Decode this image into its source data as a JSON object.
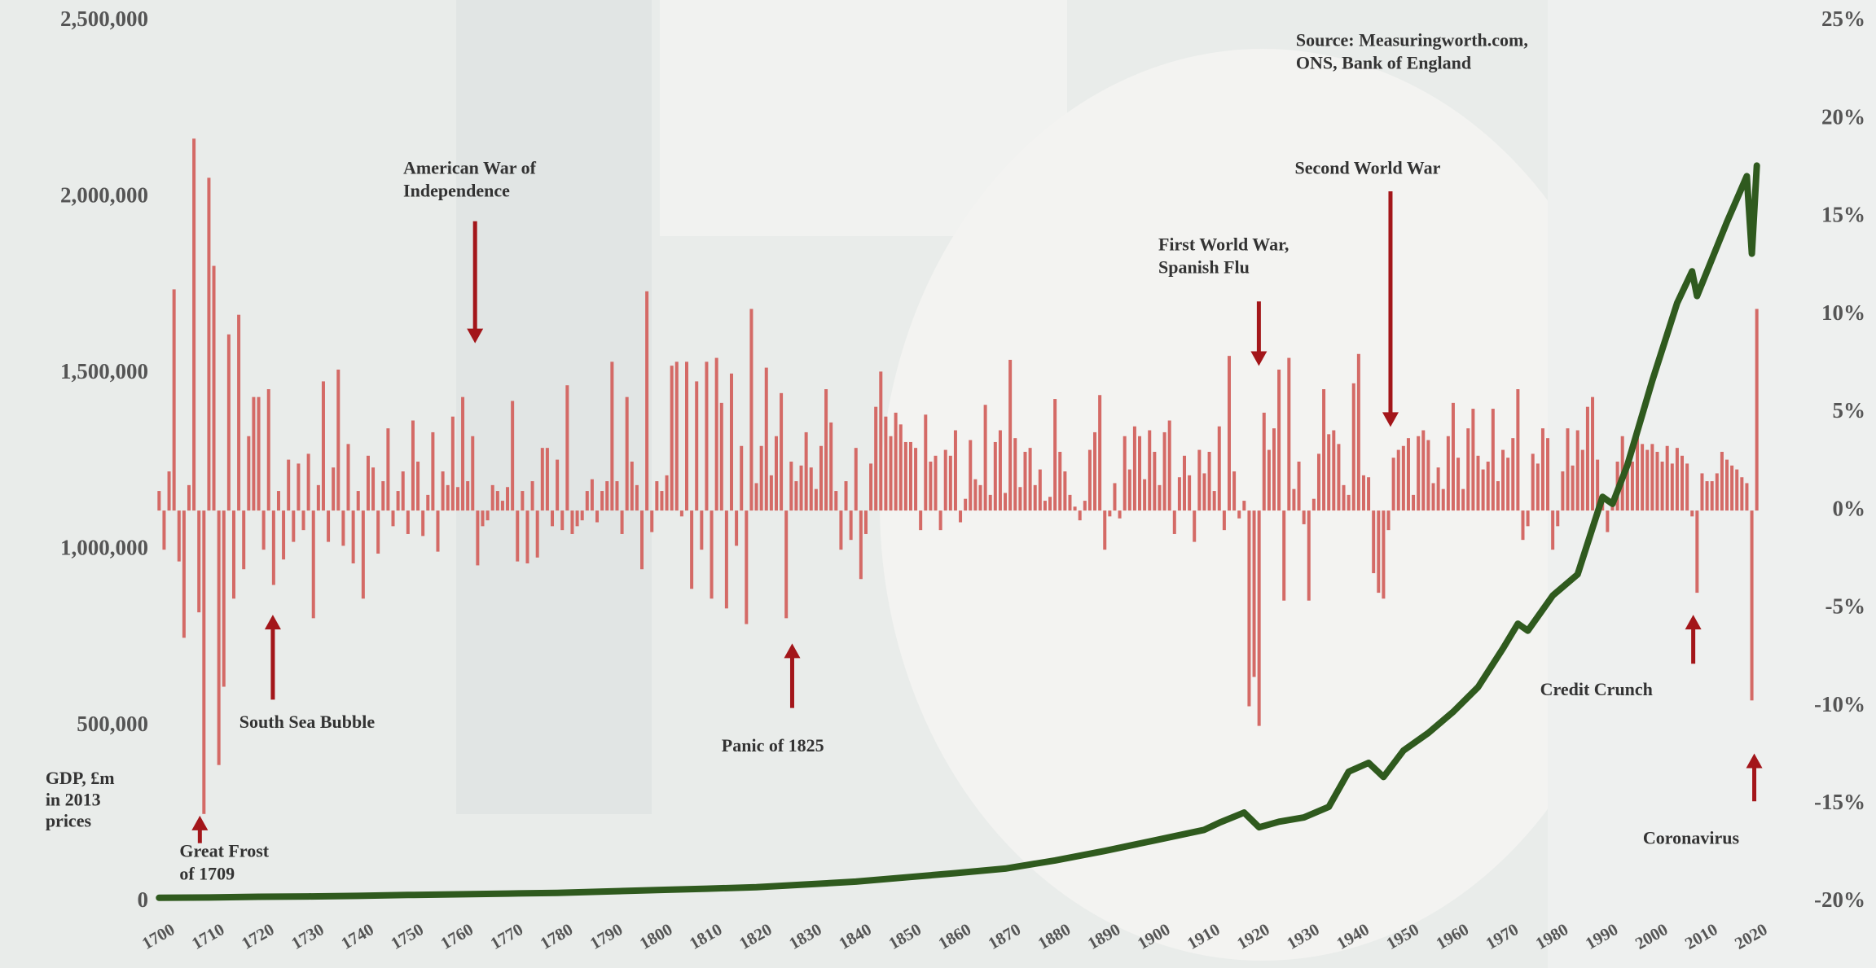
{
  "chart_data": {
    "type": "bar",
    "source": [
      "Source: Measuringworth.com,",
      "ONS, Bank of England"
    ],
    "ylabel": [
      "GDP, £m",
      "in 2013",
      "prices"
    ],
    "xlim": [
      1697,
      2024
    ],
    "xticks": [
      1700,
      1710,
      1720,
      1730,
      1740,
      1750,
      1760,
      1770,
      1780,
      1790,
      1800,
      1810,
      1820,
      1830,
      1840,
      1850,
      1860,
      1870,
      1880,
      1890,
      1900,
      1910,
      1920,
      1930,
      1940,
      1950,
      1960,
      1970,
      1980,
      1990,
      2000,
      2010,
      2020
    ],
    "ylim": [
      0,
      2500000
    ],
    "yticks": [
      0,
      {
        "value": 500000,
        "label": "500,000"
      },
      {
        "value": 1000000,
        "label": "1,000,000"
      },
      {
        "value": 1500000,
        "label": "1,500,000"
      },
      {
        "value": 2000000,
        "label": "2,000,000"
      },
      {
        "value": 2500000,
        "label": "2,500,000"
      }
    ],
    "y2lim": [
      -20,
      25
    ],
    "y2ticks": [
      {
        "value": -20,
        "label": "-20%"
      },
      {
        "value": -15,
        "label": "-15%"
      },
      {
        "value": -10,
        "label": "-10%"
      },
      {
        "value": -5,
        "label": "-5%"
      },
      {
        "value": 0,
        "label": "0%"
      },
      {
        "value": 5,
        "label": "5%"
      },
      {
        "value": 10,
        "label": "10%"
      },
      {
        "value": 15,
        "label": "15%"
      },
      {
        "value": 20,
        "label": "20%"
      },
      {
        "value": 25,
        "label": "25%"
      }
    ],
    "series": [
      {
        "type": "bar",
        "axis": "y2",
        "color": "#d46a66",
        "x": [
          1700,
          1701,
          1702,
          1703,
          1704,
          1705,
          1706,
          1707,
          1708,
          1709,
          1710,
          1711,
          1712,
          1713,
          1714,
          1715,
          1716,
          1717,
          1718,
          1719,
          1720,
          1721,
          1722,
          1723,
          1724,
          1725,
          1726,
          1727,
          1728,
          1729,
          1730,
          1731,
          1732,
          1733,
          1734,
          1735,
          1736,
          1737,
          1738,
          1739,
          1740,
          1741,
          1742,
          1743,
          1744,
          1745,
          1746,
          1747,
          1748,
          1749,
          1750,
          1751,
          1752,
          1753,
          1754,
          1755,
          1756,
          1757,
          1758,
          1759,
          1760,
          1761,
          1762,
          1763,
          1764,
          1765,
          1766,
          1767,
          1768,
          1769,
          1770,
          1771,
          1772,
          1773,
          1774,
          1775,
          1776,
          1777,
          1778,
          1779,
          1780,
          1781,
          1782,
          1783,
          1784,
          1785,
          1786,
          1787,
          1788,
          1789,
          1790,
          1791,
          1792,
          1793,
          1794,
          1795,
          1796,
          1797,
          1798,
          1799,
          1800,
          1801,
          1802,
          1803,
          1804,
          1805,
          1806,
          1807,
          1808,
          1809,
          1810,
          1811,
          1812,
          1813,
          1814,
          1815,
          1816,
          1817,
          1818,
          1819,
          1820,
          1821,
          1822,
          1823,
          1824,
          1825,
          1826,
          1827,
          1828,
          1829,
          1830,
          1831,
          1832,
          1833,
          1834,
          1835,
          1836,
          1837,
          1838,
          1839,
          1840,
          1841,
          1842,
          1843,
          1844,
          1845,
          1846,
          1847,
          1848,
          1849,
          1850,
          1851,
          1852,
          1853,
          1854,
          1855,
          1856,
          1857,
          1858,
          1859,
          1860,
          1861,
          1862,
          1863,
          1864,
          1865,
          1866,
          1867,
          1868,
          1869,
          1870,
          1871,
          1872,
          1873,
          1874,
          1875,
          1876,
          1877,
          1878,
          1879,
          1880,
          1881,
          1882,
          1883,
          1884,
          1885,
          1886,
          1887,
          1888,
          1889,
          1890,
          1891,
          1892,
          1893,
          1894,
          1895,
          1896,
          1897,
          1898,
          1899,
          1900,
          1901,
          1902,
          1903,
          1904,
          1905,
          1906,
          1907,
          1908,
          1909,
          1910,
          1911,
          1912,
          1913,
          1914,
          1915,
          1916,
          1917,
          1918,
          1919,
          1920,
          1921,
          1922,
          1923,
          1924,
          1925,
          1926,
          1927,
          1928,
          1929,
          1930,
          1931,
          1932,
          1933,
          1934,
          1935,
          1936,
          1937,
          1938,
          1939,
          1940,
          1941,
          1942,
          1943,
          1944,
          1945,
          1946,
          1947,
          1948,
          1949,
          1950,
          1951,
          1952,
          1953,
          1954,
          1955,
          1956,
          1957,
          1958,
          1959,
          1960,
          1961,
          1962,
          1963,
          1964,
          1965,
          1966,
          1967,
          1968,
          1969,
          1970,
          1971,
          1972,
          1973,
          1974,
          1975,
          1976,
          1977,
          1978,
          1979,
          1980,
          1981,
          1982,
          1983,
          1984,
          1985,
          1986,
          1987,
          1988,
          1989,
          1990,
          1991,
          1992,
          1993,
          1994,
          1995,
          1996,
          1997,
          1998,
          1999,
          2000,
          2001,
          2002,
          2003,
          2004,
          2005,
          2006,
          2007,
          2008,
          2009,
          2010,
          2011,
          2012,
          2013,
          2014,
          2015,
          2016,
          2017,
          2018,
          2019,
          2020,
          2021
        ],
        "values": [
          1.0,
          -2.0,
          2.0,
          11.3,
          -2.6,
          -6.5,
          1.3,
          19.0,
          -5.2,
          -15.5,
          17.0,
          12.5,
          -13.0,
          -9.0,
          9.0,
          -4.5,
          10.0,
          -3.0,
          3.8,
          5.8,
          5.8,
          -2.0,
          6.2,
          -3.8,
          1.0,
          -2.5,
          2.6,
          -1.6,
          2.4,
          -1.0,
          2.9,
          -5.5,
          1.3,
          6.6,
          -1.6,
          2.2,
          7.2,
          -1.8,
          3.4,
          -2.7,
          1.0,
          -4.5,
          2.8,
          2.2,
          -2.2,
          1.5,
          4.2,
          -0.8,
          1.0,
          2.0,
          -1.2,
          4.6,
          2.5,
          -1.3,
          0.8,
          4.0,
          -2.1,
          2.0,
          1.3,
          4.8,
          1.2,
          5.8,
          1.5,
          3.8,
          -2.8,
          -0.8,
          -0.5,
          1.3,
          1.0,
          0.5,
          1.2,
          5.6,
          -2.6,
          1.0,
          -2.7,
          1.5,
          -2.4,
          3.2,
          3.2,
          -0.8,
          2.6,
          -1.0,
          6.4,
          -1.2,
          -0.8,
          -0.5,
          1.0,
          1.6,
          -0.6,
          1.0,
          1.5,
          7.6,
          1.5,
          -1.2,
          5.8,
          2.5,
          1.3,
          -3.0,
          11.2,
          -1.1,
          1.5,
          1.0,
          1.8,
          7.4,
          7.6,
          -0.3,
          7.6,
          -4.0,
          6.6,
          -2.0,
          7.6,
          -4.5,
          7.8,
          5.5,
          -5.0,
          7.0,
          -1.8,
          3.3,
          -5.8,
          10.3,
          1.4,
          3.3,
          7.3,
          1.8,
          3.8,
          6.0,
          -5.5,
          2.5,
          1.5,
          2.3,
          4.0,
          2.2,
          1.1,
          3.3,
          6.2,
          4.5,
          1.0,
          -2.0,
          1.5,
          -1.5,
          3.2,
          -3.5,
          -1.2,
          2.4,
          5.3,
          7.1,
          4.8,
          3.8,
          5.0,
          4.4,
          3.5,
          3.5,
          3.2,
          -1.0,
          4.9,
          2.5,
          2.8,
          -1.0,
          3.1,
          2.8,
          4.1,
          -0.6,
          0.6,
          3.6,
          1.6,
          1.3,
          5.4,
          0.8,
          3.5,
          4.1,
          0.9,
          7.7,
          3.7,
          1.2,
          3.0,
          3.2,
          1.3,
          2.1,
          0.5,
          0.7,
          5.7,
          3.0,
          2.0,
          0.8,
          0.2,
          -0.5,
          0.5,
          3.1,
          4.0,
          5.9,
          -2.0,
          -0.3,
          1.4,
          -0.4,
          3.8,
          2.1,
          4.3,
          3.8,
          1.6,
          4.1,
          3.0,
          1.3,
          4.0,
          4.6,
          -1.2,
          1.7,
          2.8,
          1.8,
          -1.6,
          3.1,
          1.9,
          3.0,
          1.0,
          4.3,
          -1.0,
          7.9,
          2.0,
          -0.4,
          0.5,
          -10.0,
          -8.5,
          -11.0,
          5.0,
          3.1,
          4.2,
          7.2,
          -4.6,
          7.8,
          1.1,
          2.5,
          -0.7,
          -4.6,
          0.6,
          2.9,
          6.2,
          3.9,
          4.1,
          3.4,
          1.3,
          0.8,
          6.5,
          8.0,
          1.8,
          1.7,
          -3.2,
          -4.2,
          -4.5,
          -1.0,
          2.7,
          3.1,
          3.3,
          3.7,
          0.8,
          3.8,
          4.1,
          3.6,
          1.4,
          2.2,
          1.1,
          3.8,
          5.5,
          2.7,
          1.1,
          4.2,
          5.2,
          2.8,
          2.1,
          2.5,
          5.2,
          1.5,
          3.1,
          2.7,
          3.7,
          6.2,
          -1.5,
          -0.8,
          2.9,
          2.4,
          4.2,
          3.7,
          -2.0,
          -0.8,
          2.0,
          4.2,
          2.3,
          4.1,
          3.1,
          5.3,
          5.8,
          2.6,
          0.7,
          -1.1,
          0.4,
          2.5,
          3.8,
          2.5,
          2.5,
          4.3,
          3.4,
          3.1,
          3.4,
          3.0,
          2.5,
          3.3,
          2.4,
          3.2,
          2.8,
          2.4,
          -0.3,
          -4.2,
          1.9,
          1.5,
          1.5,
          1.9,
          3.0,
          2.6,
          2.3,
          2.1,
          1.7,
          1.4,
          -9.7,
          10.3
        ]
      },
      {
        "type": "line",
        "axis": "y",
        "color": "#2f5a1e",
        "x": [
          1700,
          1710,
          1720,
          1730,
          1740,
          1750,
          1760,
          1770,
          1780,
          1790,
          1800,
          1810,
          1820,
          1830,
          1840,
          1850,
          1860,
          1870,
          1880,
          1890,
          1900,
          1910,
          1913,
          1918,
          1919,
          1921,
          1925,
          1930,
          1935,
          1939,
          1943,
          1946,
          1950,
          1955,
          1960,
          1965,
          1970,
          1973,
          1975,
          1980,
          1985,
          1990,
          1992,
          1995,
          2000,
          2005,
          2008,
          2009,
          2015,
          2019,
          2020,
          2021
        ],
        "values": [
          12000,
          13000,
          15000,
          16000,
          17500,
          20000,
          22000,
          24000,
          26000,
          30000,
          34000,
          38000,
          42000,
          50000,
          58000,
          70000,
          82000,
          95000,
          118000,
          145000,
          175000,
          205000,
          225000,
          254000,
          240000,
          212000,
          228000,
          240000,
          270000,
          370000,
          395000,
          355000,
          430000,
          480000,
          540000,
          610000,
          720000,
          790000,
          770000,
          870000,
          930000,
          1150000,
          1130000,
          1240000,
          1480000,
          1700000,
          1790000,
          1720000,
          1930000,
          2060000,
          1840000,
          2090000
        ]
      }
    ],
    "annotations": [
      {
        "text": [
          "American War of",
          "Independence"
        ]
      },
      {
        "text": [
          "Second World War"
        ]
      },
      {
        "text": [
          "First World War,",
          "Spanish Flu"
        ]
      },
      {
        "text": [
          "South Sea Bubble"
        ]
      },
      {
        "text": [
          "Panic of 1825"
        ]
      },
      {
        "text": [
          "Great Frost",
          "of 1709"
        ]
      },
      {
        "text": [
          "Credit Crunch"
        ]
      },
      {
        "text": [
          "Coronavirus"
        ]
      }
    ]
  }
}
